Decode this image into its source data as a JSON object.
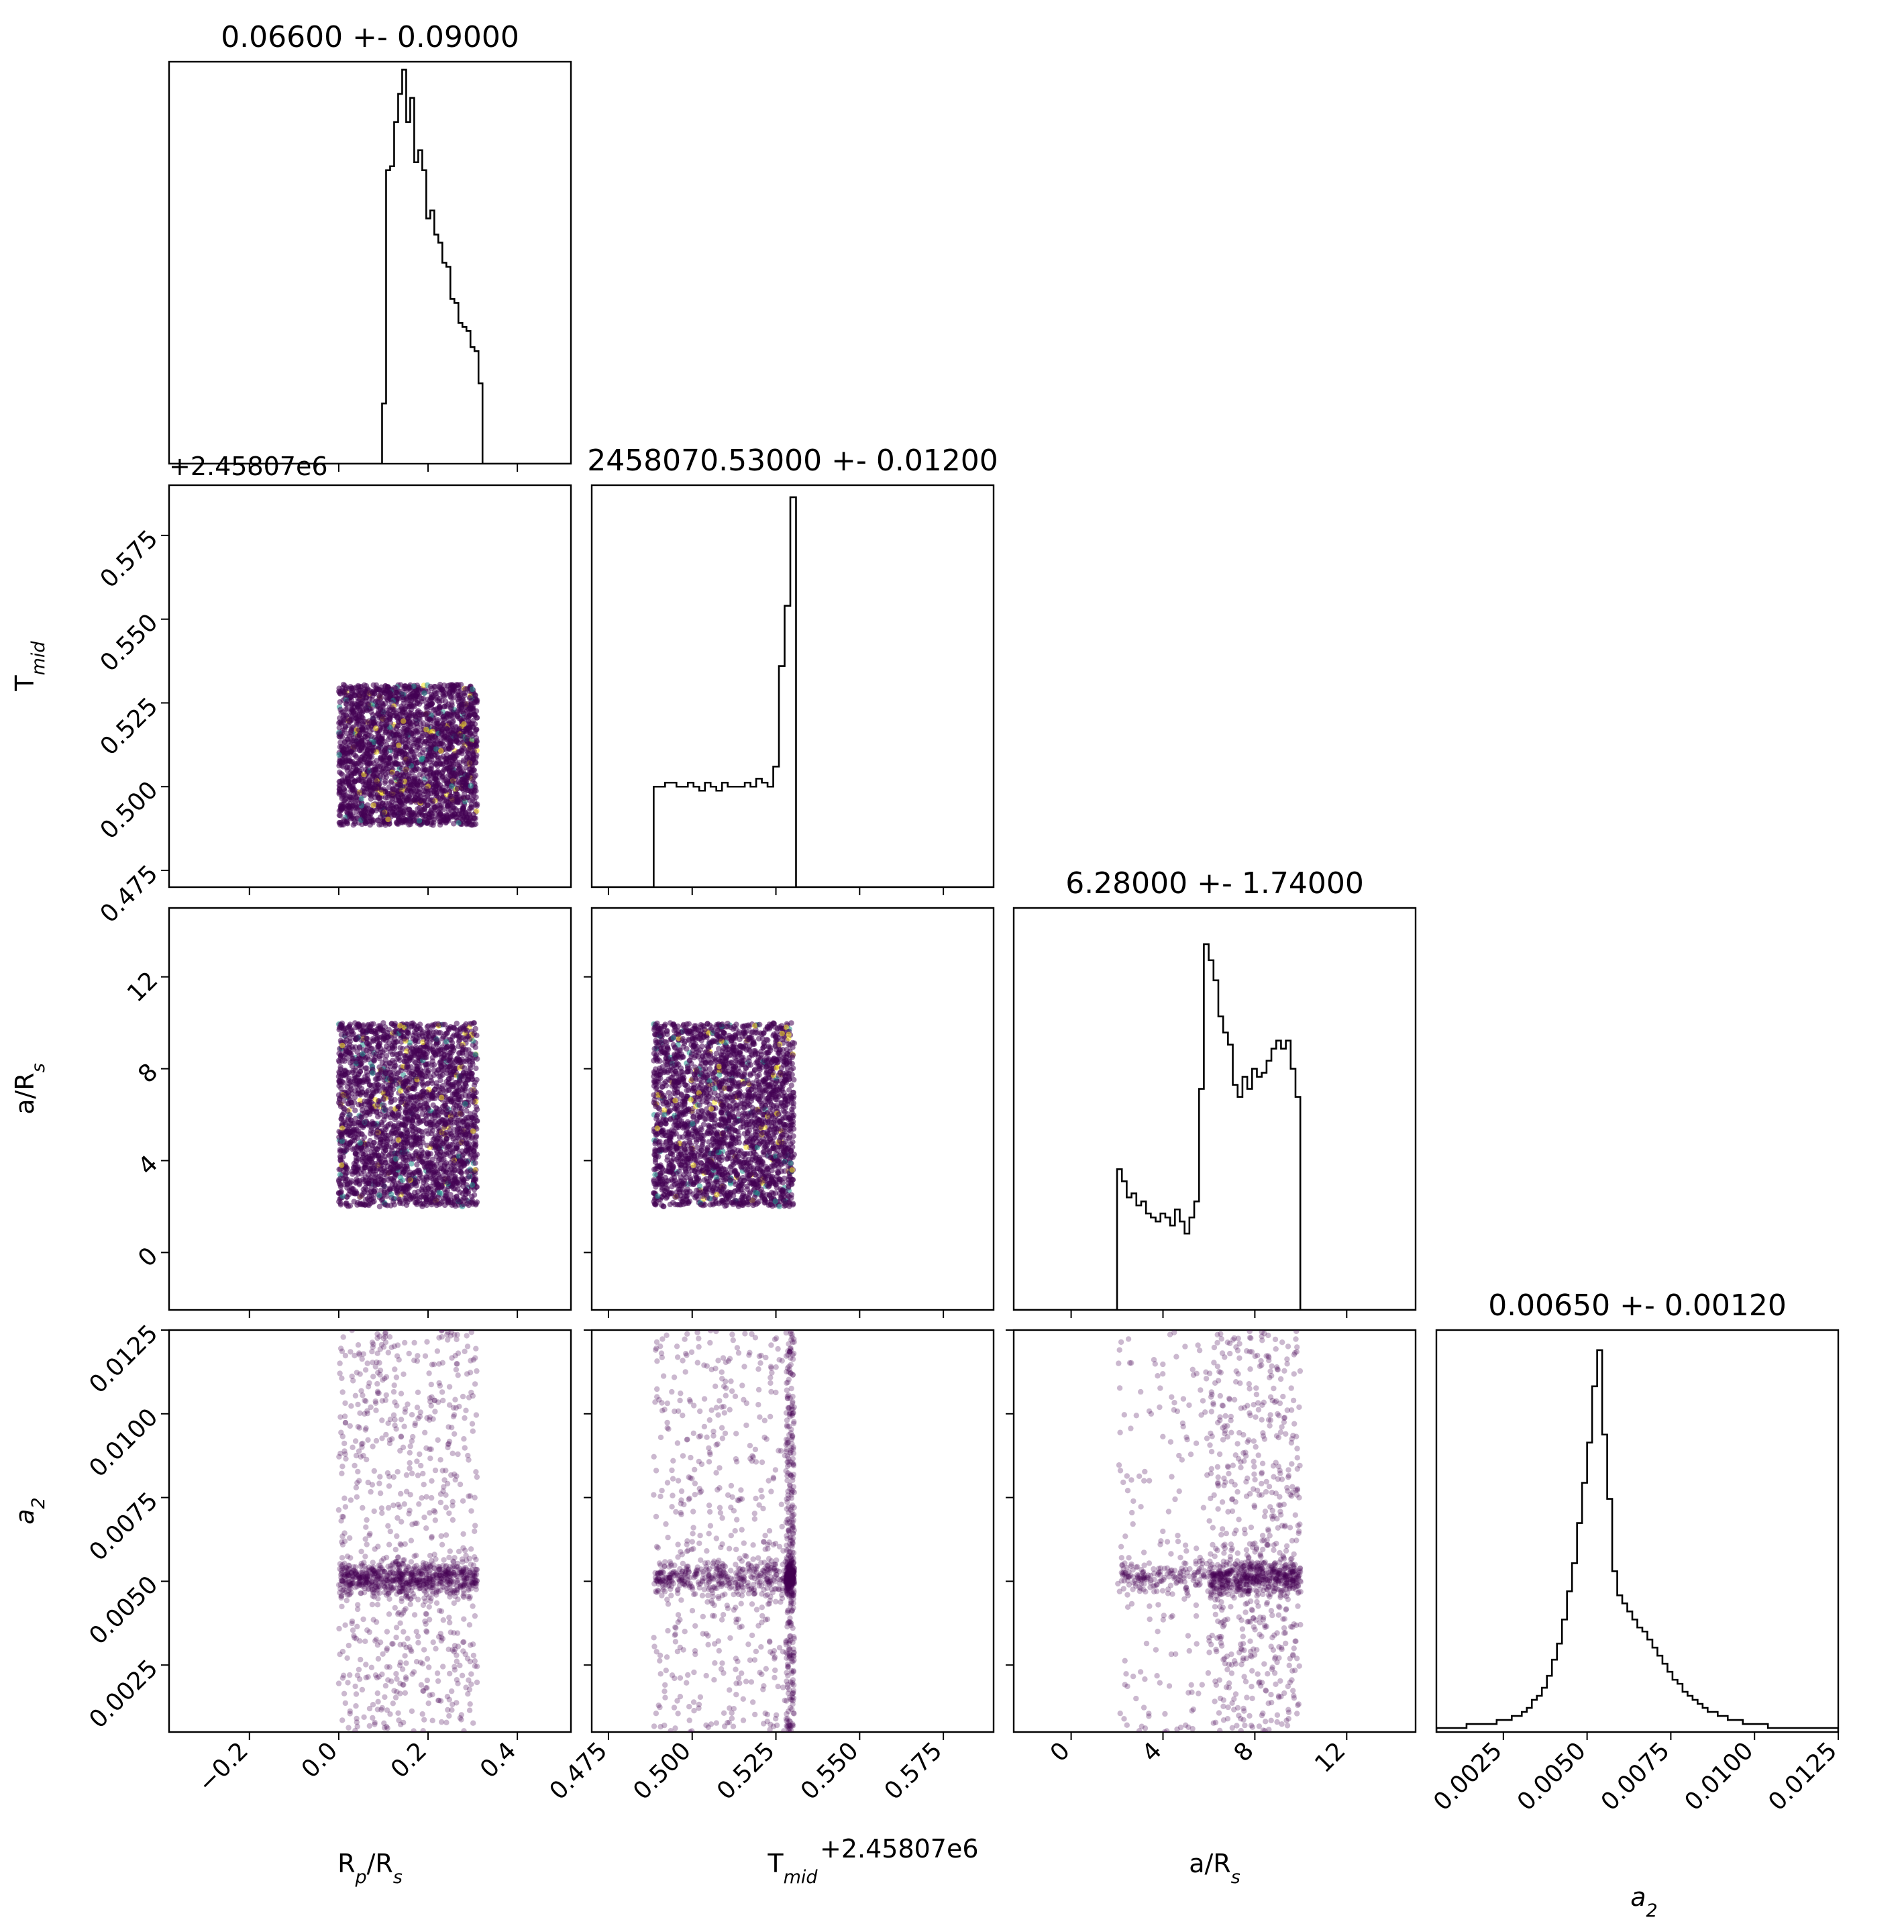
{
  "chart_data": {
    "type": "corner",
    "parameters": [
      {
        "key": "rp",
        "title": "0.06600 +- 0.09000",
        "label": {
          "base": "R",
          "sub": "p",
          "rest": "/R",
          "sub2": "s"
        },
        "range": [
          -0.38,
          0.52
        ],
        "ticks": [
          -0.2,
          0.0,
          0.2,
          0.4
        ],
        "tick_labels": [
          "−0.2",
          "0.0",
          "0.2",
          "0.4"
        ],
        "sample_range": [
          0.0,
          0.31
        ],
        "hist": [
          0.0,
          0.0,
          0.0,
          0.0,
          0.0,
          0.0,
          0.0,
          0.0,
          0.0,
          0.0,
          0.0,
          0.0,
          0.0,
          0.0,
          0.0,
          0.0,
          0.0,
          0.0,
          0.0,
          0.0,
          0.0,
          0.0,
          0.0,
          0.0,
          0.0,
          0.0,
          0.0,
          0.0,
          0.0,
          0.0,
          0.0,
          0.0,
          0.0,
          0.0,
          0.0,
          0.0,
          0.0,
          0.0,
          0.0,
          0.0,
          0.0,
          0.0,
          0.0,
          0.0,
          0.0,
          0.0,
          0.0,
          0.0,
          0.0,
          0.0,
          0.0,
          0.0,
          0.0,
          0.15,
          0.73,
          0.74,
          0.85,
          0.92,
          0.98,
          0.85,
          0.91,
          0.75,
          0.78,
          0.73,
          0.61,
          0.63,
          0.57,
          0.55,
          0.5,
          0.49,
          0.41,
          0.4,
          0.35,
          0.34,
          0.33,
          0.29,
          0.28,
          0.2,
          0.0,
          0.0,
          0.0,
          0.0,
          0.0,
          0.0,
          0.0,
          0.0,
          0.0,
          0.0,
          0.0,
          0.0,
          0.0,
          0.0,
          0.0,
          0.0,
          0.0,
          0.0,
          0.0,
          0.0,
          0.0,
          0.0
        ]
      },
      {
        "key": "tmid",
        "title": "2458070.53000 +- 0.01200",
        "label": {
          "base": "T",
          "sub": "mid",
          "rest": "",
          "sub2": ""
        },
        "offset_text": "+2.45807e6",
        "range": [
          0.47,
          0.59
        ],
        "ticks": [
          0.475,
          0.5,
          0.525,
          0.55,
          0.575
        ],
        "tick_labels": [
          "0.475",
          "0.500",
          "0.525",
          "0.550",
          "0.575"
        ],
        "sample_range": [
          0.4885,
          0.5305
        ],
        "hist": [
          0.0,
          0.0,
          0.0,
          0.0,
          0.0,
          0.0,
          0.0,
          0.0,
          0.0,
          0.0,
          0.0,
          0.0,
          0.0,
          0.0,
          0.0,
          0.0,
          0.0,
          0.0,
          0.0,
          0.0,
          0.0,
          0.0,
          0.0,
          0.0,
          0.0,
          0.0,
          0.0,
          0.0,
          0.0,
          0.0,
          0.0,
          0.0,
          0.0,
          0.0,
          0.0,
          0.0,
          0.0,
          0.0,
          0.0,
          0.0,
          0.0,
          0.0,
          0.0,
          0.0,
          0.0,
          0.0,
          0.0,
          0.0,
          0.0,
          0.0,
          0.0,
          0.0,
          0.0,
          0.0,
          0.0,
          0.0,
          0.0,
          0.0,
          0.0,
          0.0,
          0.0,
          0.0,
          0.0,
          0.0,
          0.0,
          0.0,
          0.0,
          0.0,
          0.0,
          0.0,
          0.0,
          0.0,
          0.0,
          0.0,
          0.0,
          0.0,
          0.0,
          0.0,
          0.0,
          0.0,
          0.0,
          0.0,
          0.0,
          0.0,
          0.0,
          0.0,
          0.0,
          0.0,
          0.0,
          0.0,
          0.0,
          0.0,
          0.0,
          0.0,
          0.0,
          0.0,
          0.0,
          0.0,
          0.0,
          0.0
        ]
      },
      {
        "key": "ars",
        "title": "6.28000 +- 1.74000",
        "label": {
          "base": "a/R",
          "sub": "s",
          "rest": "",
          "sub2": ""
        },
        "range": [
          -2.5,
          15.0
        ],
        "ticks": [
          0,
          4,
          8,
          12
        ],
        "tick_labels": [
          "0",
          "4",
          "8",
          "12"
        ],
        "sample_range": [
          2.0,
          10.0
        ],
        "hist": [
          0.0,
          0.0,
          0.0,
          0.0,
          0.0,
          0.0,
          0.0,
          0.0,
          0.0,
          0.0,
          0.0,
          0.0,
          0.0,
          0.0,
          0.0,
          0.0,
          0.0,
          0.0,
          0.0,
          0.0,
          0.0,
          0.0,
          0.0,
          0.0,
          0.0,
          0.0,
          0.0,
          0.0,
          0.0,
          0.0,
          0.0,
          0.0,
          0.0,
          0.0,
          0.0,
          0.0,
          0.0,
          0.0,
          0.0,
          0.0,
          0.0,
          0.0,
          0.0,
          0.0,
          0.0,
          0.0,
          0.0,
          0.0,
          0.0,
          0.0,
          0.0,
          0.0,
          0.0,
          0.0,
          0.0,
          0.0,
          0.0,
          0.0,
          0.0,
          0.0,
          0.0,
          0.0,
          0.0,
          0.0,
          0.0,
          0.0,
          0.0,
          0.0,
          0.0,
          0.0,
          0.0,
          0.0,
          0.0,
          0.0,
          0.0,
          0.0,
          0.0,
          0.0,
          0.0,
          0.0,
          0.0,
          0.0,
          0.0,
          0.0,
          0.0,
          0.0,
          0.0,
          0.0,
          0.0,
          0.0,
          0.0,
          0.0,
          0.0,
          0.0,
          0.0,
          0.0,
          0.0,
          0.0,
          0.0,
          0.0
        ]
      },
      {
        "key": "a2",
        "title": "0.00650 +- 0.00120",
        "label": {
          "base": "a",
          "sub": "2",
          "rest": "",
          "sub2": "",
          "italic": true
        },
        "range": [
          0.0005,
          0.0125
        ],
        "ticks": [
          0.0025,
          0.005,
          0.0075,
          0.01,
          0.0125
        ],
        "tick_labels": [
          "0.0025",
          "0.0050",
          "0.0075",
          "0.0100",
          "0.0125"
        ],
        "sample_range": [
          0.0005,
          0.0125
        ],
        "hist": []
      }
    ],
    "tmid_hist": [
      0.25,
      0.25,
      0.26,
      0.26,
      0.25,
      0.25,
      0.26,
      0.25,
      0.24,
      0.26,
      0.25,
      0.24,
      0.26,
      0.25,
      0.25,
      0.25,
      0.26,
      0.25,
      0.27,
      0.26,
      0.25,
      0.3,
      0.55,
      0.7,
      0.97,
      0.0
    ],
    "tmid_hist_start": 0.4885,
    "tmid_hist_binwidth": 0.0017,
    "ars_hist": [
      0.35,
      0.32,
      0.28,
      0.29,
      0.26,
      0.27,
      0.24,
      0.23,
      0.22,
      0.24,
      0.23,
      0.21,
      0.25,
      0.22,
      0.19,
      0.23,
      0.27,
      0.55,
      0.91,
      0.87,
      0.82,
      0.73,
      0.69,
      0.66,
      0.56,
      0.53,
      0.58,
      0.55,
      0.6,
      0.58,
      0.59,
      0.62,
      0.65,
      0.67,
      0.65,
      0.67,
      0.6,
      0.53,
      0.0
    ],
    "ars_hist_start": 2.0,
    "ars_hist_binwidth": 0.21,
    "a2_hist": [
      0.01,
      0.01,
      0.01,
      0.01,
      0.01,
      0.01,
      0.02,
      0.02,
      0.02,
      0.02,
      0.02,
      0.02,
      0.03,
      0.03,
      0.03,
      0.04,
      0.04,
      0.05,
      0.06,
      0.08,
      0.09,
      0.11,
      0.14,
      0.18,
      0.22,
      0.28,
      0.35,
      0.42,
      0.52,
      0.62,
      0.72,
      0.86,
      0.95,
      0.74,
      0.58,
      0.4,
      0.34,
      0.32,
      0.3,
      0.28,
      0.26,
      0.25,
      0.23,
      0.21,
      0.19,
      0.17,
      0.15,
      0.13,
      0.12,
      0.1,
      0.09,
      0.08,
      0.07,
      0.06,
      0.05,
      0.05,
      0.04,
      0.04,
      0.03,
      0.03,
      0.03,
      0.02,
      0.02,
      0.02,
      0.02,
      0.02,
      0.01,
      0.01,
      0.01,
      0.01,
      0.01,
      0.01,
      0.01,
      0.01,
      0.01,
      0.01,
      0.01,
      0.01,
      0.01,
      0.01
    ],
    "a2_hist_start": 0.0005,
    "a2_hist_binwidth": 0.00015,
    "rp_hist_start": -0.38,
    "rp_hist_binwidth": 0.009,
    "scatter_color": "#440154",
    "yellow_color": "#fde725",
    "teal_color": "#21918c",
    "hist_color": "#000000",
    "grid": false
  }
}
